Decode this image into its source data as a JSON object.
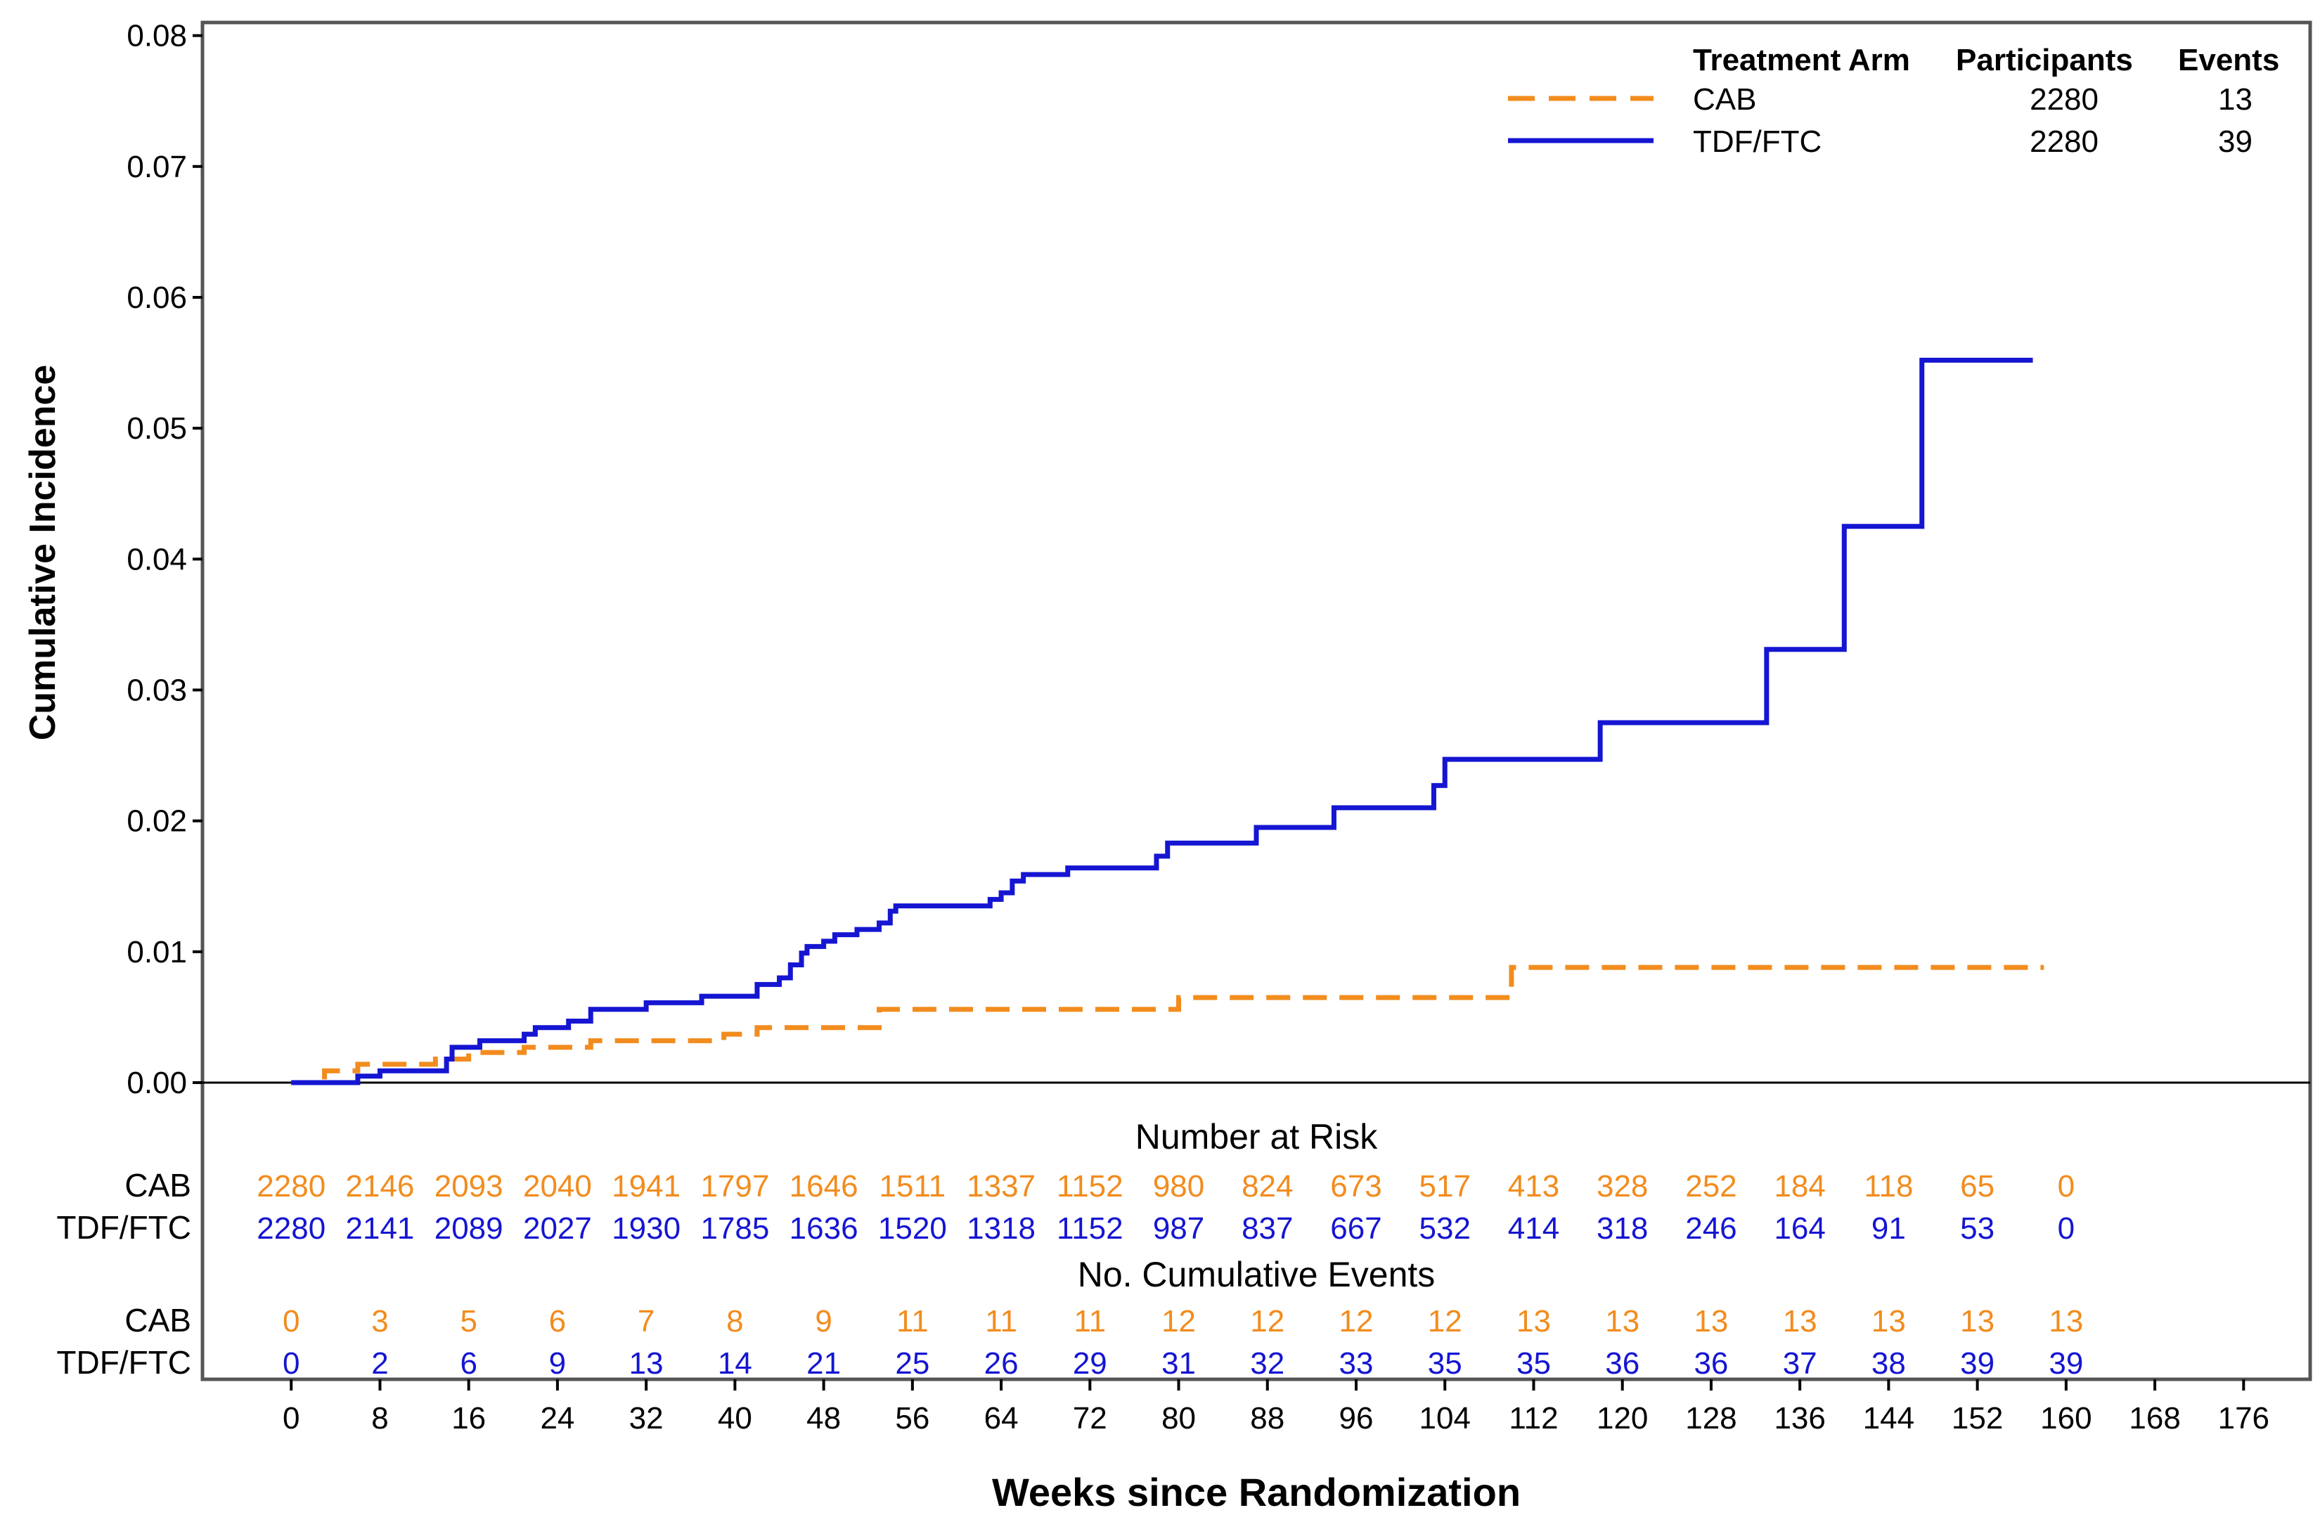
{
  "chart_data": {
    "type": "line",
    "subtype": "step",
    "xlabel": "Weeks since Randomization",
    "ylabel": "Cumulative Incidence",
    "xlim": [
      -8,
      182
    ],
    "ylim": [
      0,
      0.081
    ],
    "lower_panel_floor": 0.0,
    "x_ticks": [
      0,
      8,
      16,
      24,
      32,
      40,
      48,
      56,
      64,
      72,
      80,
      88,
      96,
      104,
      112,
      120,
      128,
      136,
      144,
      152,
      160,
      168,
      176
    ],
    "y_ticks": [
      0.0,
      0.01,
      0.02,
      0.03,
      0.04,
      0.05,
      0.06,
      0.07,
      0.08
    ],
    "y_tick_labels": [
      "0.00",
      "0.01",
      "0.02",
      "0.03",
      "0.04",
      "0.05",
      "0.06",
      "0.07",
      "0.08"
    ],
    "legend": {
      "placement": "top-right",
      "headers": [
        "Treatment Arm",
        "Participants",
        "Events"
      ],
      "rows": [
        {
          "arm": "CAB",
          "participants": "2280",
          "events": "13"
        },
        {
          "arm": "TDF/FTC",
          "participants": "2280",
          "events": "39"
        }
      ]
    },
    "series": [
      {
        "name": "CAB",
        "color": "#F28C1E",
        "style": "dashed",
        "points": [
          [
            0,
            0.0
          ],
          [
            3,
            0.0009
          ],
          [
            6,
            0.0014
          ],
          [
            13,
            0.0018
          ],
          [
            16,
            0.0023
          ],
          [
            21,
            0.0027
          ],
          [
            27,
            0.0032
          ],
          [
            39,
            0.0037
          ],
          [
            42,
            0.0042
          ],
          [
            53,
            0.0056
          ],
          [
            80,
            0.0065
          ],
          [
            110,
            0.0088
          ],
          [
            158,
            0.0088
          ]
        ]
      },
      {
        "name": "TDF/FTC",
        "color": "#1515D2",
        "style": "solid",
        "points": [
          [
            0,
            0.0
          ],
          [
            6,
            0.0005
          ],
          [
            8,
            0.0009
          ],
          [
            14,
            0.0018
          ],
          [
            14.5,
            0.0027
          ],
          [
            17,
            0.0032
          ],
          [
            21,
            0.0037
          ],
          [
            22,
            0.0042
          ],
          [
            25,
            0.0047
          ],
          [
            27,
            0.0056
          ],
          [
            32,
            0.0061
          ],
          [
            37,
            0.0066
          ],
          [
            42,
            0.0075
          ],
          [
            44,
            0.008
          ],
          [
            45,
            0.009
          ],
          [
            46,
            0.0099
          ],
          [
            46.5,
            0.0104
          ],
          [
            48,
            0.0108
          ],
          [
            49,
            0.0113
          ],
          [
            51,
            0.0117
          ],
          [
            53,
            0.0122
          ],
          [
            54,
            0.0131
          ],
          [
            54.5,
            0.0135
          ],
          [
            63,
            0.014
          ],
          [
            64,
            0.0145
          ],
          [
            65,
            0.0154
          ],
          [
            66,
            0.0159
          ],
          [
            70,
            0.0164
          ],
          [
            78,
            0.0173
          ],
          [
            79,
            0.0183
          ],
          [
            87,
            0.0195
          ],
          [
            94,
            0.021
          ],
          [
            103,
            0.0227
          ],
          [
            104,
            0.0247
          ],
          [
            118,
            0.0275
          ],
          [
            133,
            0.0331
          ],
          [
            140,
            0.0425
          ],
          [
            147,
            0.0552
          ],
          [
            157,
            0.0552
          ]
        ]
      }
    ],
    "number_at_risk": {
      "title": "Number at Risk",
      "rows": [
        {
          "label": "CAB",
          "values": [
            "2280",
            "2146",
            "2093",
            "2040",
            "1941",
            "1797",
            "1646",
            "1511",
            "1337",
            "1152",
            "980",
            "824",
            "673",
            "517",
            "413",
            "328",
            "252",
            "184",
            "118",
            "65",
            "0"
          ]
        },
        {
          "label": "TDF/FTC",
          "values": [
            "2280",
            "2141",
            "2089",
            "2027",
            "1930",
            "1785",
            "1636",
            "1520",
            "1318",
            "1152",
            "987",
            "837",
            "667",
            "532",
            "414",
            "318",
            "246",
            "164",
            "91",
            "53",
            "0"
          ]
        }
      ]
    },
    "cumulative_events": {
      "title": "No. Cumulative Events",
      "rows": [
        {
          "label": "CAB",
          "values": [
            "0",
            "3",
            "5",
            "6",
            "7",
            "8",
            "9",
            "11",
            "11",
            "11",
            "12",
            "12",
            "12",
            "12",
            "13",
            "13",
            "13",
            "13",
            "13",
            "13",
            "13"
          ]
        },
        {
          "label": "TDF/FTC",
          "values": [
            "0",
            "2",
            "6",
            "9",
            "13",
            "14",
            "21",
            "25",
            "26",
            "29",
            "31",
            "32",
            "33",
            "35",
            "35",
            "36",
            "36",
            "37",
            "38",
            "39",
            "39"
          ]
        }
      ]
    }
  }
}
